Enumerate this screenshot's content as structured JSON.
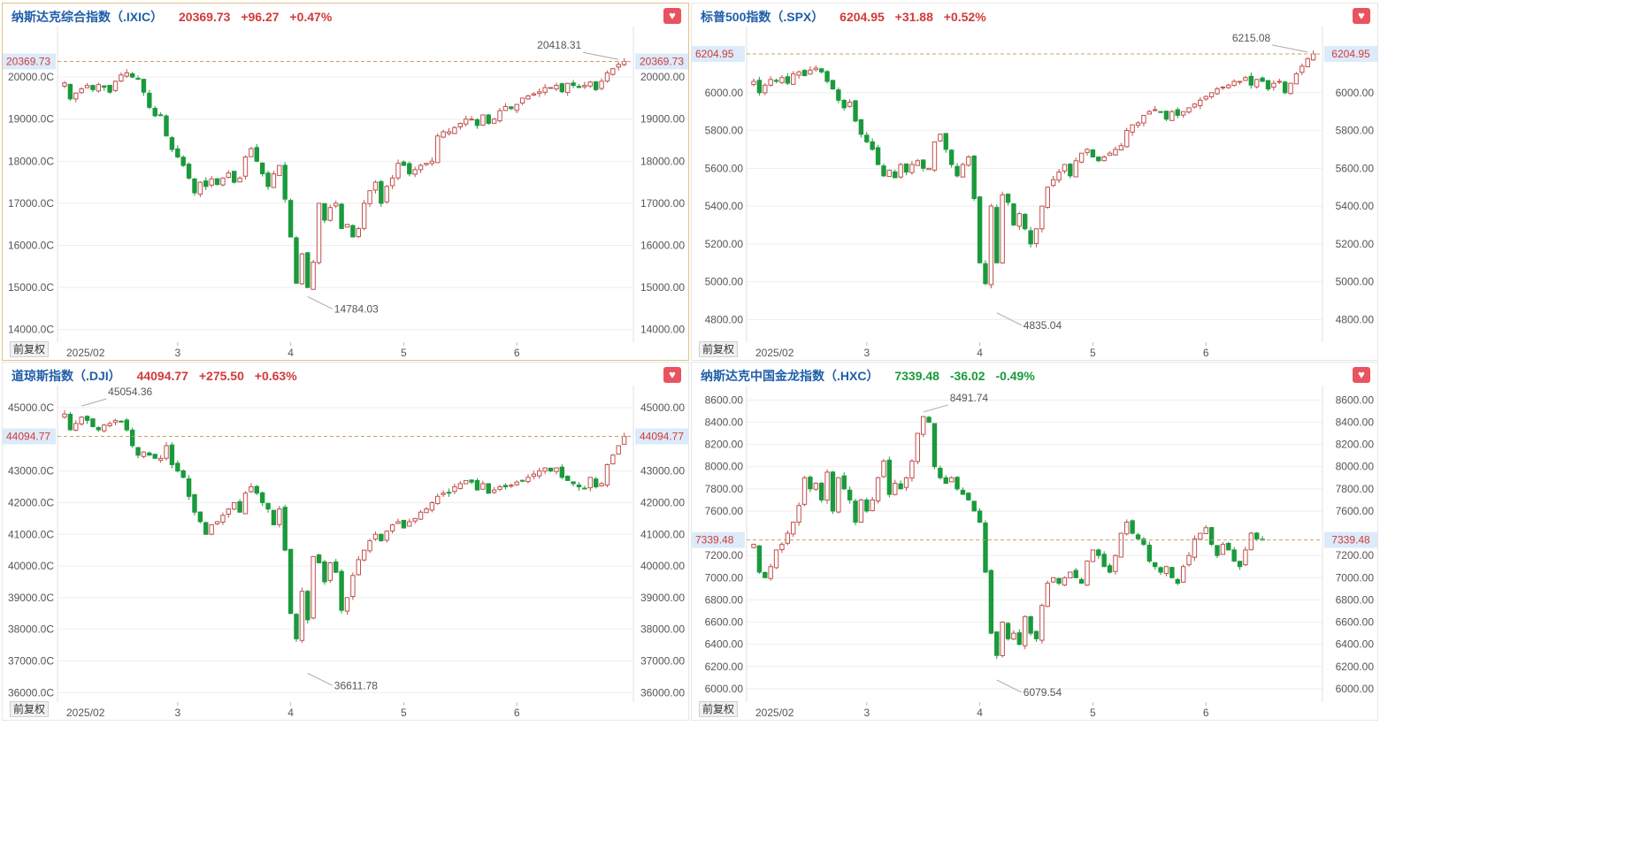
{
  "colors": {
    "up": "#c0504d",
    "down": "#1a9a3c",
    "grid": "#eeeeee",
    "crosshair": "#c9a061"
  },
  "adjust_label": "前复权",
  "fav_icon": "heart-icon",
  "chart_data": [
    {
      "type": "candlestick",
      "title": "纳斯达克综合指数（.IXIC）",
      "last": "20369.73",
      "change": "+96.27",
      "pct": "+0.47%",
      "direction": "up",
      "last_value": 20369.73,
      "ylim": [
        13700,
        21200
      ],
      "yticks": [
        14000,
        15000,
        16000,
        17000,
        18000,
        19000,
        20000
      ],
      "left_tick_labels": [
        "14000.0C",
        "15000.0C",
        "16000.0C",
        "17000.0C",
        "18000.0C",
        "19000.0C",
        "20000.0C"
      ],
      "right_tick_labels": [
        "14000.00",
        "15000.00",
        "16000.00",
        "17000.00",
        "18000.00",
        "19000.00",
        "20000.00"
      ],
      "last_label": "20369.73",
      "xticks": [
        {
          "label": "2025/02",
          "i": 0
        },
        {
          "label": "3",
          "i": 20
        },
        {
          "label": "4",
          "i": 40
        },
        {
          "label": "5",
          "i": 60
        },
        {
          "label": "6",
          "i": 80
        }
      ],
      "annotations": [
        {
          "label": "14784.03",
          "i": 43,
          "value": 14784.03
        },
        {
          "label": "20418.31",
          "i": 98,
          "value": 20418.31
        }
      ],
      "closes": [
        19860,
        19480,
        19620,
        19720,
        19800,
        19700,
        19820,
        19760,
        19640,
        19900,
        20050,
        20100,
        20000,
        19960,
        19640,
        19280,
        19080,
        19100,
        18600,
        18280,
        18100,
        17900,
        17600,
        17250,
        17500,
        17400,
        17580,
        17450,
        17600,
        17720,
        17500,
        17600,
        18100,
        18300,
        18000,
        17700,
        17400,
        17700,
        17900,
        17100,
        16200,
        15100,
        15800,
        15000,
        15600,
        17000,
        16600,
        16900,
        17000,
        16400,
        16500,
        16200,
        16400,
        17000,
        17300,
        17500,
        17000,
        17400,
        17600,
        17950,
        17900,
        17700,
        17800,
        17900,
        17950,
        18000,
        18600,
        18700,
        18700,
        18800,
        18900,
        19000,
        19000,
        18850,
        19100,
        18900,
        19000,
        19200,
        19300,
        19250,
        19350,
        19500,
        19550,
        19600,
        19650,
        19750,
        19750,
        19800,
        19650,
        19850,
        19800,
        19750,
        19800,
        19880,
        19700,
        19900,
        20100,
        20200,
        20300,
        20369.73
      ]
    },
    {
      "type": "candlestick",
      "title": "标普500指数（.SPX）",
      "last": "6204.95",
      "change": "+31.88",
      "pct": "+0.52%",
      "direction": "up",
      "last_value": 6204.95,
      "ylim": [
        4680,
        6350
      ],
      "yticks": [
        4800,
        5000,
        5200,
        5400,
        5600,
        5800,
        6000
      ],
      "left_tick_labels": [
        "4800.00",
        "5000.00",
        "5200.00",
        "5400.00",
        "5600.00",
        "5800.00",
        "6000.00"
      ],
      "right_tick_labels": [
        "4800.00",
        "5000.00",
        "5200.00",
        "5400.00",
        "5600.00",
        "5800.00",
        "6000.00"
      ],
      "last_label": "6204.95",
      "xticks": [
        {
          "label": "2025/02",
          "i": 0
        },
        {
          "label": "3",
          "i": 20
        },
        {
          "label": "4",
          "i": 40
        },
        {
          "label": "5",
          "i": 60
        },
        {
          "label": "6",
          "i": 80
        }
      ],
      "annotations": [
        {
          "label": "4835.04",
          "i": 43,
          "value": 4835.04
        },
        {
          "label": "6215.08",
          "i": 98,
          "value": 6215.08
        }
      ],
      "closes": [
        6060,
        6000,
        6040,
        6070,
        6060,
        6080,
        6050,
        6100,
        6110,
        6090,
        6120,
        6130,
        6110,
        6060,
        6020,
        5960,
        5920,
        5950,
        5850,
        5780,
        5740,
        5700,
        5620,
        5560,
        5590,
        5550,
        5620,
        5580,
        5620,
        5640,
        5600,
        5600,
        5740,
        5780,
        5700,
        5620,
        5560,
        5620,
        5660,
        5440,
        5100,
        4990,
        5400,
        5100,
        5460,
        5420,
        5300,
        5360,
        5280,
        5200,
        5280,
        5400,
        5500,
        5540,
        5580,
        5620,
        5560,
        5640,
        5680,
        5700,
        5660,
        5640,
        5660,
        5680,
        5700,
        5720,
        5800,
        5830,
        5840,
        5880,
        5900,
        5910,
        5900,
        5860,
        5900,
        5880,
        5900,
        5920,
        5940,
        5960,
        5980,
        6000,
        6020,
        6030,
        6040,
        6060,
        6060,
        6080,
        6040,
        6070,
        6060,
        6020,
        6050,
        6060,
        6000,
        6050,
        6100,
        6140,
        6180,
        6204.95
      ]
    },
    {
      "type": "candlestick",
      "title": "道琼斯指数（.DJI）",
      "last": "44094.77",
      "change": "+275.50",
      "pct": "+0.63%",
      "direction": "up",
      "last_value": 44094.77,
      "ylim": [
        35700,
        45700
      ],
      "yticks": [
        36000,
        37000,
        38000,
        39000,
        40000,
        41000,
        42000,
        43000,
        45000
      ],
      "left_tick_labels": [
        "36000.0C",
        "37000.0C",
        "38000.0C",
        "39000.0C",
        "40000.0C",
        "41000.0C",
        "42000.0C",
        "43000.0C",
        "45000.0C"
      ],
      "right_tick_labels": [
        "36000.00",
        "37000.00",
        "38000.00",
        "39000.00",
        "40000.00",
        "41000.00",
        "42000.00",
        "43000.00",
        "45000.00"
      ],
      "last_label": "44094.77",
      "xticks": [
        {
          "label": "2025/02",
          "i": 0
        },
        {
          "label": "3",
          "i": 20
        },
        {
          "label": "4",
          "i": 40
        },
        {
          "label": "5",
          "i": 60
        },
        {
          "label": "6",
          "i": 80
        }
      ],
      "annotations": [
        {
          "label": "36611.78",
          "i": 43,
          "value": 36611.78
        },
        {
          "label": "45054.36",
          "i": 3,
          "value": 45054.36
        }
      ],
      "closes": [
        44800,
        44300,
        44500,
        44700,
        44600,
        44400,
        44300,
        44450,
        44500,
        44600,
        44550,
        44300,
        43800,
        43500,
        43600,
        43500,
        43400,
        43400,
        43800,
        43200,
        43000,
        42800,
        42200,
        41700,
        41400,
        41000,
        41300,
        41400,
        41600,
        41800,
        42000,
        41700,
        42300,
        42500,
        42300,
        42000,
        41800,
        41300,
        41800,
        40500,
        38500,
        37700,
        39200,
        38300,
        40300,
        40100,
        39500,
        40100,
        39800,
        38600,
        39000,
        39700,
        40200,
        40500,
        40800,
        41000,
        40800,
        41100,
        41300,
        41400,
        41200,
        41400,
        41500,
        41700,
        41800,
        42000,
        42200,
        42300,
        42300,
        42500,
        42600,
        42700,
        42650,
        42400,
        42600,
        42300,
        42400,
        42500,
        42500,
        42550,
        42650,
        42700,
        42800,
        42900,
        43000,
        43100,
        43000,
        43100,
        42800,
        42700,
        42600,
        42500,
        42450,
        42800,
        42500,
        42600,
        43200,
        43500,
        43800,
        44094.77
      ]
    },
    {
      "type": "candlestick",
      "title": "纳斯达克中国金龙指数（.HXC）",
      "last": "7339.48",
      "change": "-36.02",
      "pct": "-0.49%",
      "direction": "down",
      "last_value": 7339.48,
      "ylim": [
        5880,
        8730
      ],
      "yticks": [
        6000,
        6200,
        6400,
        6600,
        6800,
        7000,
        7200,
        7600,
        7800,
        8000,
        8200,
        8400,
        8600
      ],
      "left_tick_labels": [
        "6000.00",
        "6200.00",
        "6400.00",
        "6600.00",
        "6800.00",
        "7000.00",
        "7200.00",
        "7600.00",
        "7800.00",
        "8000.00",
        "8200.00",
        "8400.00",
        "8600.00"
      ],
      "right_tick_labels": [
        "6000.00",
        "6200.00",
        "6400.00",
        "6600.00",
        "6800.00",
        "7000.00",
        "7200.00",
        "7600.00",
        "7800.00",
        "8000.00",
        "8200.00",
        "8400.00",
        "8600.00"
      ],
      "last_label": "7339.48",
      "xticks": [
        {
          "label": "2025/02",
          "i": 0
        },
        {
          "label": "3",
          "i": 20
        },
        {
          "label": "4",
          "i": 40
        },
        {
          "label": "5",
          "i": 60
        },
        {
          "label": "6",
          "i": 80
        }
      ],
      "annotations": [
        {
          "label": "6079.54",
          "i": 43,
          "value": 6079.54
        },
        {
          "label": "8491.74",
          "i": 30,
          "value": 8491.74
        }
      ],
      "closes": [
        7300,
        7050,
        7000,
        7100,
        7250,
        7300,
        7400,
        7500,
        7650,
        7900,
        7800,
        7850,
        7700,
        7950,
        7600,
        7900,
        7800,
        7700,
        7500,
        7700,
        7600,
        7700,
        7900,
        8050,
        7750,
        7850,
        7800,
        7900,
        8050,
        8300,
        8450,
        8400,
        8000,
        7900,
        7850,
        7900,
        7800,
        7750,
        7700,
        7600,
        7500,
        7050,
        6500,
        6300,
        6600,
        6450,
        6500,
        6400,
        6650,
        6500,
        6450,
        6750,
        6950,
        7000,
        6950,
        7000,
        7050,
        7000,
        6950,
        7150,
        7250,
        7200,
        7100,
        7050,
        7200,
        7400,
        7500,
        7400,
        7350,
        7300,
        7150,
        7100,
        7050,
        7100,
        7000,
        6950,
        7100,
        7200,
        7350,
        7400,
        7450,
        7300,
        7200,
        7300,
        7250,
        7150,
        7100,
        7250,
        7400,
        7350,
        7339.48
      ]
    }
  ]
}
